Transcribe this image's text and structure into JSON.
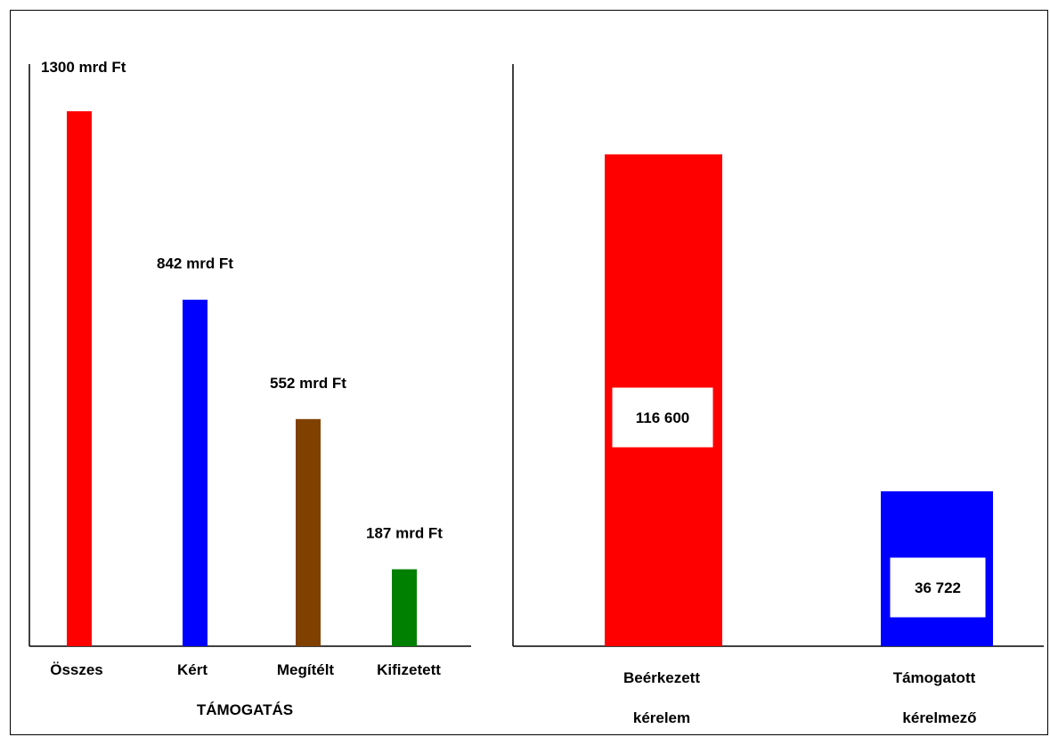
{
  "chart_data": [
    {
      "type": "bar",
      "categories": [
        "Összes",
        "Kért",
        "Megítélt",
        "Kifizetett"
      ],
      "values": [
        1300,
        842,
        552,
        187
      ],
      "value_labels": [
        "1300 mrd Ft",
        "842 mrd Ft",
        "552 mrd Ft",
        "187 mrd Ft"
      ],
      "colors": [
        "#ff0000",
        "#0000ff",
        "#804000",
        "#008000"
      ],
      "xlabel": "TÁMOGATÁS",
      "ylabel": "",
      "ylim": [
        0,
        1300
      ],
      "grid": false
    },
    {
      "type": "bar",
      "categories": [
        [
          "Beérkezett",
          "kérelem"
        ],
        [
          "Támogatott",
          "kérelmező"
        ]
      ],
      "values": [
        116600,
        36722
      ],
      "value_labels": [
        "116 600",
        "36 722"
      ],
      "colors": [
        "#ff0000",
        "#0000ff"
      ],
      "xlabel": "",
      "ylabel": "",
      "ylim": [
        0,
        138000
      ],
      "grid": false
    }
  ]
}
